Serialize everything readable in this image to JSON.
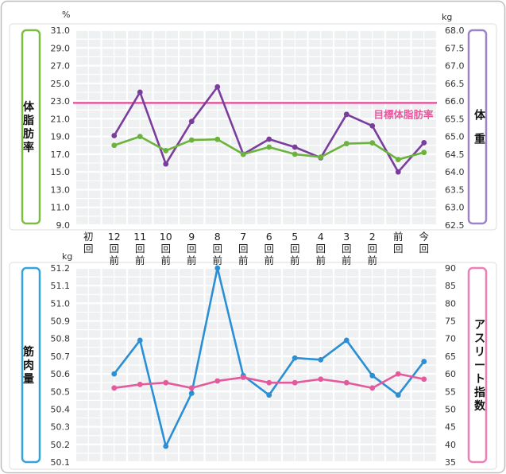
{
  "x_labels": [
    [
      "初",
      "回"
    ],
    [
      "12",
      "回",
      "前"
    ],
    [
      "11",
      "回",
      "前"
    ],
    [
      "10",
      "回",
      "前"
    ],
    [
      "9",
      "回",
      "前"
    ],
    [
      "8",
      "回",
      "前"
    ],
    [
      "7",
      "回",
      "前"
    ],
    [
      "6",
      "回",
      "前"
    ],
    [
      "5",
      "回",
      "前"
    ],
    [
      "4",
      "回",
      "前"
    ],
    [
      "3",
      "回",
      "前"
    ],
    [
      "2",
      "回",
      "前"
    ],
    [
      "前",
      "回"
    ],
    [
      "今",
      "回"
    ]
  ],
  "colors": {
    "fat": "#7a3d9e",
    "weight": "#6cb33e",
    "muscle": "#2a8fd4",
    "athlete": "#e45a9d",
    "target": "#e45a9d",
    "grid_bg": "#eef0f1",
    "grid_line": "#ffffff",
    "panel_border": "#dcdcdc",
    "tab_green": "#7dbd42",
    "tab_purple": "#9d84c8",
    "tab_blue": "#35a3dd",
    "tab_pink": "#ec7fb3"
  },
  "chart_data": [
    {
      "type": "line",
      "panel": "top",
      "left_axis": {
        "unit": "%",
        "label": "体脂肪率",
        "ylim": [
          9.0,
          31.0
        ],
        "ticks": [
          "31.0",
          "29.0",
          "27.0",
          "25.0",
          "23.0",
          "21.0",
          "19.0",
          "17.0",
          "15.0",
          "13.0",
          "11.0",
          "9.0"
        ]
      },
      "right_axis": {
        "unit": "kg",
        "label": "体重",
        "ylim": [
          62.5,
          68.0
        ],
        "ticks": [
          "68.0",
          "67.5",
          "67.0",
          "66.5",
          "66.0",
          "65.5",
          "65.0",
          "64.5",
          "64.0",
          "63.5",
          "63.0",
          "62.5"
        ]
      },
      "reference_line": {
        "axis": "left",
        "value": 22.8,
        "label": "目標体脂肪率"
      },
      "series": [
        {
          "key": "fat",
          "axis": "left",
          "values": [
            null,
            19.1,
            24.0,
            15.9,
            20.7,
            24.6,
            17.0,
            18.7,
            17.8,
            16.6,
            21.5,
            20.2,
            15.0,
            18.3
          ]
        },
        {
          "key": "weight",
          "axis": "right",
          "values": [
            null,
            64.75,
            65.0,
            64.6,
            64.9,
            64.92,
            64.5,
            64.7,
            64.5,
            64.42,
            64.8,
            64.82,
            64.35,
            64.55
          ]
        }
      ]
    },
    {
      "type": "line",
      "panel": "bottom",
      "left_axis": {
        "unit": "kg",
        "label": "筋肉量",
        "ylim": [
          50.1,
          51.2
        ],
        "ticks": [
          "51.2",
          "51.1",
          "51.0",
          "50.9",
          "50.8",
          "50.7",
          "50.6",
          "50.5",
          "50.4",
          "50.3",
          "50.2",
          "50.1"
        ]
      },
      "right_axis": {
        "unit": "",
        "label": "アスリート指数",
        "ylim": [
          35,
          90
        ],
        "ticks": [
          "90",
          "85",
          "80",
          "75",
          "70",
          "65",
          "60",
          "55",
          "50",
          "45",
          "40",
          "35"
        ]
      },
      "series": [
        {
          "key": "muscle",
          "axis": "left",
          "values": [
            null,
            50.6,
            50.79,
            50.19,
            50.49,
            51.2,
            50.59,
            50.48,
            50.69,
            50.68,
            50.79,
            50.59,
            50.48,
            50.67
          ]
        },
        {
          "key": "athlete",
          "axis": "right",
          "values": [
            null,
            56.0,
            57.0,
            57.5,
            56.0,
            58.0,
            59.0,
            57.5,
            57.5,
            58.5,
            57.5,
            56.0,
            60.0,
            58.5
          ]
        }
      ]
    }
  ]
}
